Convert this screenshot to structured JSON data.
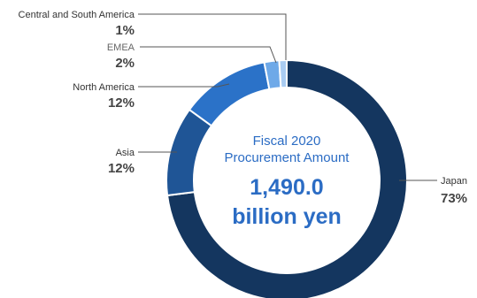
{
  "chart_data": {
    "type": "pie",
    "center": {
      "line1": "Fiscal 2020",
      "line2": "Procurement Amount",
      "value": "1,490.0",
      "unit": "billion yen"
    },
    "slices": [
      {
        "name": "Japan",
        "value": 73,
        "label": "73%",
        "color": "#14365f"
      },
      {
        "name": "Asia",
        "value": 12,
        "label": "12%",
        "color": "#1f5596"
      },
      {
        "name": "North America",
        "value": 12,
        "label": "12%",
        "color": "#2b72c8"
      },
      {
        "name": "EMEA",
        "value": 2,
        "label": "2%",
        "color": "#6ea9e8"
      },
      {
        "name": "Central and South America",
        "value": 1,
        "label": "1%",
        "color": "#a9ccf2"
      }
    ]
  }
}
